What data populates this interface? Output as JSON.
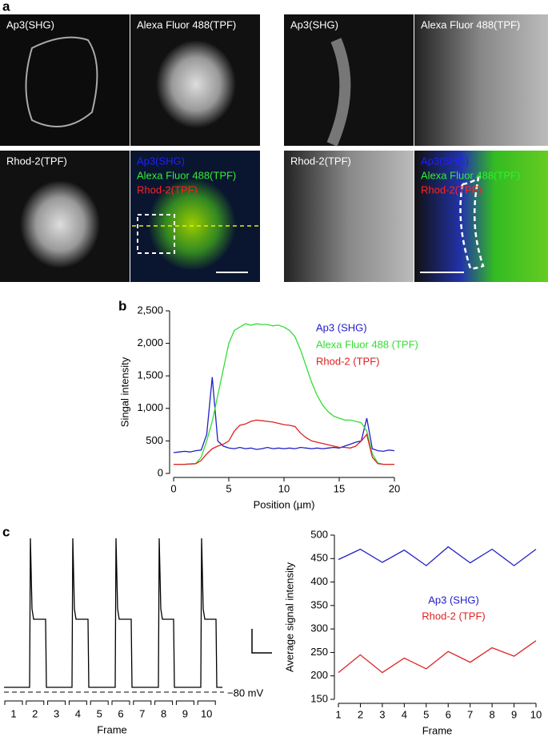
{
  "panel_labels": [
    "a",
    "b",
    "c"
  ],
  "images": [
    {
      "label": "Ap3(SHG)"
    },
    {
      "label": "Alexa Fluor 488(TPF)"
    },
    {
      "label": "Rhod-2(TPF)"
    },
    {
      "labels": [
        "Ap3(SHG)",
        "Alexa Fluor 488(TPF)",
        "Rhod-2(TPF)"
      ]
    },
    {
      "label": "Ap3(SHG)"
    },
    {
      "label": "Alexa Fluor 488(TPF)"
    },
    {
      "label": "Rhod-2(TPF)"
    },
    {
      "labels": [
        "Ap3(SHG)",
        "Alexa Fluor 488(TPF)",
        "Rhod-2(TPF)"
      ]
    }
  ],
  "trace": {
    "frame_labels": [
      "1",
      "2",
      "3",
      "4",
      "5",
      "6",
      "7",
      "8",
      "9",
      "10"
    ],
    "xlabel": "Frame",
    "baseline_label": "−80 mV"
  },
  "chart_data": [
    {
      "type": "line",
      "xlabel": "Position (µm)",
      "ylabel": "Singal intensity",
      "xlim": [
        0,
        20
      ],
      "xticks": [
        0,
        5,
        10,
        15,
        20
      ],
      "ylim": [
        0,
        2500
      ],
      "yticks": [
        0,
        500,
        {
          "value": 1000,
          "label": "1,000"
        },
        {
          "value": 1500,
          "label": "1,500"
        },
        {
          "value": 2000,
          "label": "2,000"
        },
        {
          "value": 2500,
          "label": "2,500"
        }
      ],
      "x": [
        0,
        0.5,
        1,
        1.5,
        2,
        2.5,
        3,
        3.5,
        4,
        4.5,
        5,
        5.5,
        6,
        6.5,
        7,
        7.5,
        8,
        8.5,
        9,
        9.5,
        10,
        10.5,
        11,
        11.5,
        12,
        12.5,
        13,
        13.5,
        14,
        14.5,
        15,
        15.5,
        16,
        16.5,
        17,
        17.5,
        18,
        18.5,
        19,
        19.5,
        20
      ],
      "series": [
        {
          "name": "Ap3 (SHG)",
          "color": "#2020c8",
          "values": [
            320,
            330,
            340,
            330,
            350,
            360,
            600,
            1480,
            500,
            420,
            390,
            380,
            400,
            380,
            390,
            370,
            380,
            400,
            380,
            390,
            380,
            390,
            380,
            400,
            390,
            380,
            390,
            380,
            390,
            400,
            390,
            420,
            450,
            480,
            500,
            850,
            380,
            350,
            340,
            360,
            350
          ]
        },
        {
          "name": "Alexa Fluor 488 (TPF)",
          "color": "#33dd33",
          "values": [
            140,
            140,
            140,
            145,
            150,
            250,
            500,
            800,
            1200,
            1600,
            2000,
            2200,
            2250,
            2300,
            2280,
            2300,
            2290,
            2290,
            2270,
            2280,
            2250,
            2200,
            2100,
            1900,
            1650,
            1400,
            1200,
            1050,
            950,
            880,
            850,
            820,
            820,
            800,
            780,
            650,
            300,
            160,
            140,
            140,
            140
          ]
        },
        {
          "name": "Rhod-2 (TPF)",
          "color": "#dd2222",
          "values": [
            140,
            140,
            140,
            145,
            150,
            200,
            300,
            380,
            420,
            450,
            500,
            650,
            740,
            760,
            800,
            820,
            810,
            800,
            790,
            770,
            750,
            740,
            720,
            620,
            550,
            500,
            480,
            460,
            440,
            420,
            400,
            400,
            390,
            420,
            500,
            600,
            250,
            150,
            140,
            140,
            140
          ]
        }
      ]
    },
    {
      "type": "line",
      "xlabel": "Frame",
      "ylabel": "Average signal intensity",
      "xlim": [
        1,
        10
      ],
      "xticks": [
        1,
        2,
        3,
        4,
        5,
        6,
        7,
        8,
        9,
        10
      ],
      "ylim": [
        150,
        500
      ],
      "yticks": [
        150,
        200,
        250,
        300,
        350,
        400,
        450,
        500
      ],
      "x": [
        1,
        2,
        3,
        4,
        5,
        6,
        7,
        8,
        9,
        10
      ],
      "series": [
        {
          "name": "Ap3 (SHG)",
          "color": "#2020c8",
          "values": [
            448,
            470,
            442,
            468,
            435,
            475,
            441,
            470,
            435,
            470
          ]
        },
        {
          "name": "Rhod-2 (TPF)",
          "color": "#dd2222",
          "values": [
            207,
            245,
            207,
            238,
            215,
            252,
            229,
            260,
            242,
            275
          ]
        }
      ]
    }
  ]
}
